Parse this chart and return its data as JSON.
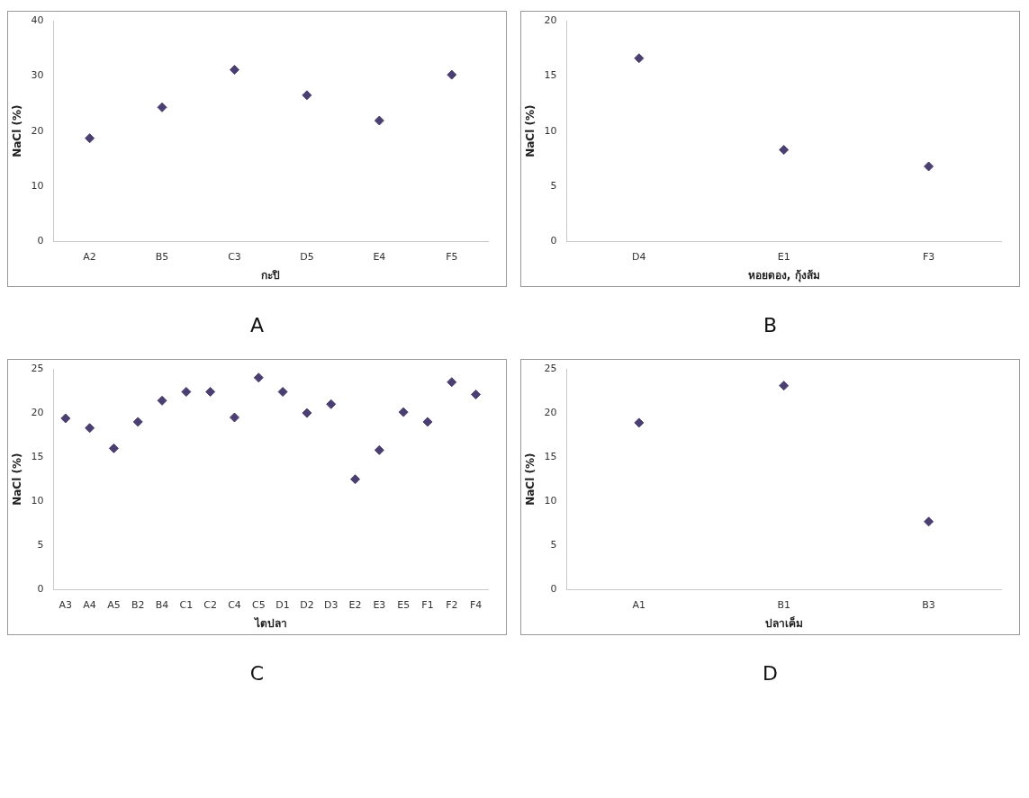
{
  "chart_data": [
    {
      "type": "scatter",
      "xlabel": "กะปิ",
      "ylabel": "NaCl (%)",
      "categories": [
        "A2",
        "B5",
        "C3",
        "D5",
        "E4",
        "F5"
      ],
      "values": [
        18.7,
        24.3,
        31.1,
        26.5,
        21.9,
        30.2
      ],
      "color": "#4b3f72",
      "ylim": [
        0,
        40
      ],
      "yticks": [
        0,
        10,
        20,
        30,
        40
      ],
      "marker": "diamond",
      "grid": false,
      "legend": false,
      "annotations": [
        "A"
      ]
    },
    {
      "type": "scatter",
      "xlabel": "หอยดอง, กุ้งส้ม",
      "ylabel": "NaCl (%)",
      "categories": [
        "D4",
        "E1",
        "F3"
      ],
      "values": [
        16.6,
        8.3,
        6.8
      ],
      "color": "#4b3f72",
      "ylim": [
        0,
        20
      ],
      "yticks": [
        0,
        5,
        10,
        15,
        20
      ],
      "marker": "diamond",
      "grid": false,
      "legend": false,
      "annotations": [
        "B"
      ]
    },
    {
      "type": "scatter",
      "xlabel": "ไตปลา",
      "ylabel": "NaCl (%)",
      "categories": [
        "A3",
        "A4",
        "A5",
        "B2",
        "B4",
        "C1",
        "C2",
        "C4",
        "C5",
        "D1",
        "D2",
        "D3",
        "E2",
        "E3",
        "E5",
        "F1",
        "F2",
        "F4"
      ],
      "values": [
        19.4,
        18.3,
        16.0,
        19.0,
        21.4,
        22.4,
        22.4,
        19.5,
        24.0,
        22.4,
        20.0,
        21.0,
        12.5,
        15.8,
        20.1,
        19.0,
        23.5,
        22.1
      ],
      "color": "#4b3f72",
      "ylim": [
        0,
        25
      ],
      "yticks": [
        0,
        5,
        10,
        15,
        20,
        25
      ],
      "marker": "diamond",
      "grid": false,
      "legend": false,
      "annotations": [
        "C"
      ]
    },
    {
      "type": "scatter",
      "xlabel": "ปลาเค็ม",
      "ylabel": "NaCl (%)",
      "categories": [
        "A1",
        "B1",
        "B3"
      ],
      "values": [
        18.9,
        23.1,
        7.7
      ],
      "color": "#4b3f72",
      "ylim": [
        0,
        25
      ],
      "yticks": [
        0,
        5,
        10,
        15,
        20,
        25
      ],
      "marker": "diamond",
      "grid": false,
      "legend": false,
      "annotations": [
        "D"
      ]
    }
  ]
}
